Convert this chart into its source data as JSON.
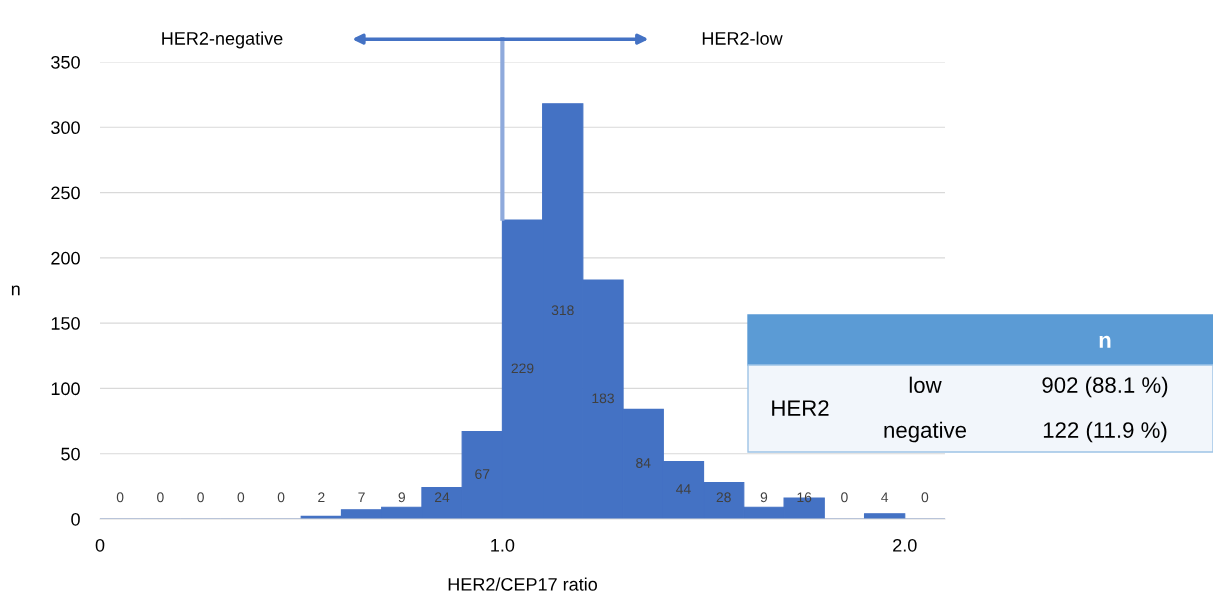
{
  "chart_data": {
    "type": "histogram",
    "xlabel": "HER2/CEP17 ratio",
    "ylabel": "n",
    "bins": [
      0.0,
      0.1,
      0.2,
      0.3,
      0.4,
      0.5,
      0.6,
      0.7,
      0.8,
      0.9,
      1.0,
      1.1,
      1.2,
      1.3,
      1.4,
      1.5,
      1.6,
      1.7,
      1.8,
      1.9,
      2.0,
      2.1
    ],
    "values": [
      0,
      0,
      0,
      0,
      0,
      2,
      7,
      9,
      24,
      67,
      229,
      318,
      183,
      84,
      44,
      28,
      9,
      16,
      0,
      4,
      0
    ],
    "color": "#4472c4",
    "data_labels": true,
    "xlim": [
      0.0,
      2.1
    ],
    "xticks": [
      0,
      {
        "value": 1.0,
        "label": "1.0"
      },
      {
        "value": 2.0,
        "label": "2.0"
      }
    ],
    "ylim": [
      0,
      350
    ],
    "yticks": [
      0,
      50,
      100,
      150,
      200,
      250,
      300,
      350
    ],
    "grid": "y",
    "legend": false,
    "ref_lines": [
      {
        "axis": "x",
        "value": 1.0,
        "color": "#8faadc"
      }
    ],
    "annotations": [
      "HER2-negative",
      "HER2-low",
      "n",
      "HER2",
      "low",
      "902 (88.1 %)",
      "negative",
      "122 (11.9 %)"
    ]
  }
}
